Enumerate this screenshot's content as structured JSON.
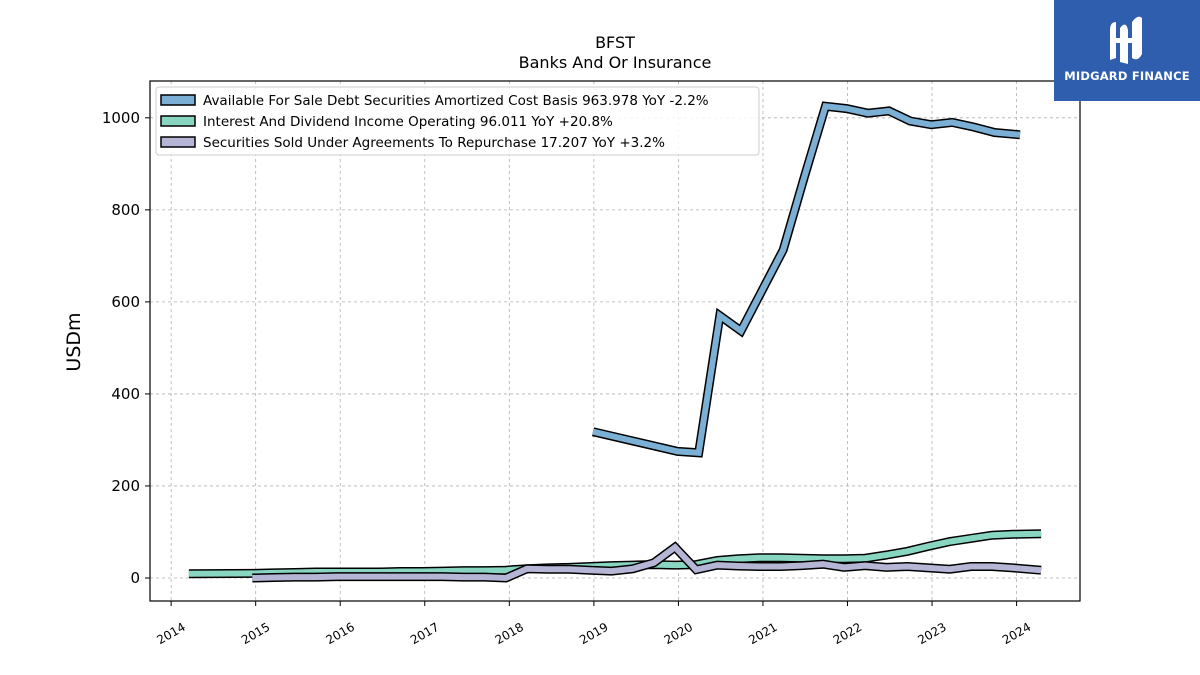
{
  "logo": {
    "text": "MIDGARD FINANCE",
    "mark": "midgard-logo-mark",
    "bg_color": "#2e5ead"
  },
  "chart_data": {
    "type": "line",
    "title": "BFST",
    "subtitle": "Banks And Or Insurance",
    "ylabel": "USDm",
    "xlabel": "",
    "xlim": [
      2013.75,
      2024.75
    ],
    "ylim": [
      -50,
      1080
    ],
    "yticks": [
      0,
      200,
      400,
      600,
      800,
      1000
    ],
    "xticks": [
      2014,
      2015,
      2016,
      2017,
      2018,
      2019,
      2020,
      2021,
      2022,
      2023,
      2024
    ],
    "grid": true,
    "legend_position": "top-left",
    "series": [
      {
        "name": "Available For Sale Debt Securities Amortized Cost Basis",
        "legend_label": "Available For Sale Debt Securities Amortized Cost Basis  963.978 YoY -2.2%",
        "color": "#7bafd4",
        "x": [
          2018.99,
          2019.99,
          2020.24,
          2020.49,
          2020.74,
          2020.99,
          2021.24,
          2021.49,
          2021.74,
          2021.99,
          2022.24,
          2022.49,
          2022.74,
          2022.99,
          2023.24,
          2023.49,
          2023.74,
          2024.04
        ],
        "values": [
          318,
          275,
          272,
          570,
          537,
          625,
          713,
          872,
          1025,
          1020,
          1010,
          1015,
          993,
          985,
          990,
          980,
          968,
          963
        ]
      },
      {
        "name": "Interest And Dividend Income Operating",
        "legend_label": "Interest And Dividend Income Operating  96.011 YoY +20.8%",
        "color": "#88d5c2",
        "x": [
          2014.21,
          2014.96,
          2015.21,
          2015.46,
          2015.71,
          2015.96,
          2016.21,
          2016.46,
          2016.71,
          2016.96,
          2017.21,
          2017.46,
          2017.71,
          2017.96,
          2018.21,
          2018.46,
          2018.71,
          2018.96,
          2019.21,
          2019.46,
          2019.71,
          2019.96,
          2020.21,
          2020.46,
          2020.71,
          2020.96,
          2021.21,
          2021.46,
          2021.71,
          2021.96,
          2022.21,
          2022.46,
          2022.71,
          2022.96,
          2023.21,
          2023.46,
          2023.71,
          2023.96,
          2024.29
        ],
        "values": [
          9,
          10,
          11,
          12,
          13,
          13,
          13,
          13,
          14,
          14,
          15,
          16,
          16,
          17,
          20,
          22,
          23,
          25,
          27,
          28,
          29,
          28,
          29,
          38,
          42,
          44,
          44,
          43,
          42,
          42,
          43,
          50,
          58,
          69,
          79,
          86,
          93,
          95,
          96
        ]
      },
      {
        "name": "Securities Sold Under Agreements To Repurchase",
        "legend_label": "Securities Sold Under Agreements To Repurchase  17.207 YoY +3.2%",
        "color": "#b5b5d6",
        "x": [
          2014.96,
          2015.21,
          2015.46,
          2015.71,
          2015.96,
          2016.21,
          2016.46,
          2016.71,
          2016.96,
          2017.21,
          2017.46,
          2017.71,
          2017.96,
          2018.21,
          2018.46,
          2018.71,
          2018.96,
          2019.21,
          2019.46,
          2019.71,
          2019.96,
          2020.21,
          2020.46,
          2020.71,
          2020.96,
          2021.21,
          2021.46,
          2021.71,
          2021.96,
          2022.21,
          2022.46,
          2022.71,
          2022.96,
          2023.21,
          2023.46,
          2023.71,
          2023.96,
          2024.29
        ],
        "values": [
          0,
          1,
          2,
          2,
          3,
          3,
          3,
          3,
          3,
          3,
          2,
          2,
          0,
          20,
          19,
          19,
          17,
          15,
          20,
          33,
          67,
          18,
          28,
          26,
          25,
          25,
          27,
          30,
          23,
          27,
          23,
          25,
          22,
          19,
          25,
          25,
          22,
          17
        ]
      }
    ]
  }
}
